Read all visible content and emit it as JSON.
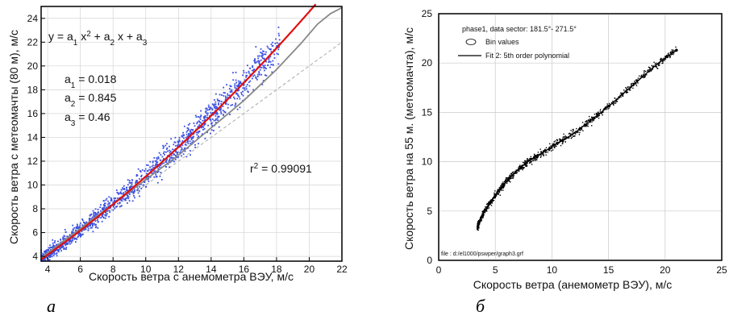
{
  "chart_data": [
    {
      "type": "scatter",
      "panel_label": "а",
      "xlabel": "Скорость ветра с анемометра ВЭУ, м/с",
      "ylabel": "Скорость ветра  с  метеомачты (80 м), м/с",
      "xlim": [
        3.6,
        22
      ],
      "ylim": [
        3.6,
        25
      ],
      "xticks": [
        "4",
        "6",
        "8",
        "10",
        "12",
        "14",
        "16",
        "18",
        "20",
        "22"
      ],
      "yticks": [
        "4",
        "6",
        "8",
        "10",
        "12",
        "14",
        "16",
        "18",
        "20",
        "22",
        "24"
      ],
      "grid": true,
      "equation": {
        "y": "y = a",
        "s1": "1",
        "x2": " x",
        "p2": "2",
        "plus1": " + a",
        "s2": "2",
        "x1": " x + a",
        "s3": "3"
      },
      "coefficients": [
        {
          "name": "a",
          "sub": "1",
          "value": " = 0.018"
        },
        {
          "name": "a",
          "sub": "2",
          "value": " = 0.845"
        },
        {
          "name": "a",
          "sub": "3",
          "value": " = 0.46"
        }
      ],
      "r2": {
        "r": "r",
        "sup": "2",
        "value": " = 0.99091"
      },
      "fit": {
        "a1": 0.018,
        "a2": 0.845,
        "a3": 0.46,
        "color": "#e01010"
      },
      "points_color": "#3a4fe0",
      "reference_line": {
        "from": [
          3.6,
          3.6
        ],
        "to": [
          22,
          22
        ],
        "color": "#aaaaaa"
      },
      "power_curve": [
        [
          3.6,
          3.9
        ],
        [
          8,
          8.4
        ],
        [
          12,
          12.5
        ],
        [
          16,
          17.1
        ],
        [
          18,
          19.7
        ],
        [
          19.5,
          21.9
        ],
        [
          20.5,
          23.5
        ],
        [
          21.3,
          24.4
        ],
        [
          22,
          24.9
        ]
      ],
      "power_curve_color": "#888888"
    },
    {
      "type": "scatter",
      "panel_label": "б",
      "xlabel": "Скорость ветра (анемометр ВЭУ), м/с",
      "ylabel": "Скорость ветра на 55 м. (метеомачта), м/с",
      "xlim": [
        0,
        25
      ],
      "ylim": [
        0,
        25
      ],
      "xticks": [
        "0",
        "5",
        "10",
        "15",
        "20",
        "25"
      ],
      "yticks": [
        "0",
        "5",
        "10",
        "15",
        "20",
        "25"
      ],
      "grid": true,
      "legend_title": "phase1, data sector: 181.5°- 271.5°",
      "legend": [
        {
          "symbol": "circle",
          "label": "Bin values"
        },
        {
          "symbol": "line",
          "label": "Fit 2:  5th order polynomial"
        }
      ],
      "file_note": "file : d:/el1000/pswper/graph3.grf",
      "curve": [
        [
          3.4,
          3.4
        ],
        [
          4,
          4.9
        ],
        [
          5,
          6.6
        ],
        [
          6,
          8.0
        ],
        [
          7,
          9.2
        ],
        [
          8,
          10.1
        ],
        [
          9,
          10.8
        ],
        [
          10,
          11.5
        ],
        [
          11,
          12.2
        ],
        [
          12,
          12.9
        ],
        [
          13,
          13.8
        ],
        [
          14,
          14.7
        ],
        [
          15,
          15.6
        ],
        [
          16,
          16.6
        ],
        [
          17,
          17.6
        ],
        [
          18,
          18.6
        ],
        [
          19,
          19.6
        ],
        [
          20,
          20.5
        ],
        [
          21,
          21.3
        ]
      ],
      "points_color": "#000000"
    }
  ]
}
